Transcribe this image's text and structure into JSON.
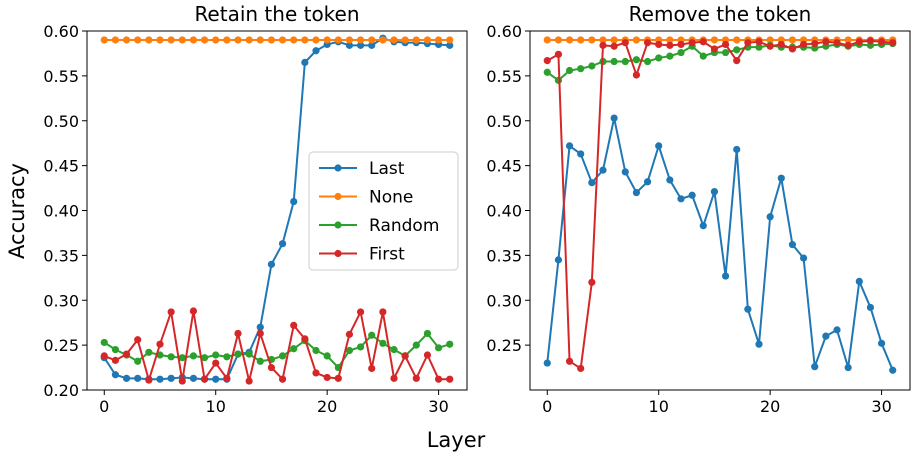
{
  "figure": {
    "shared_xlabel": "Layer"
  },
  "colors": {
    "Last": "#1f77b4",
    "None": "#ff7f0e",
    "Random": "#2ca02c",
    "First": "#d62728"
  },
  "chart_data": [
    {
      "type": "line",
      "title": "Retain the token",
      "xlabel": "Layer",
      "ylabel": "Accuracy",
      "xlim": [
        -1.55,
        32.55
      ],
      "ylim": [
        0.2,
        0.6
      ],
      "xticks": [
        0,
        10,
        20,
        30
      ],
      "yticks": [
        0.2,
        0.25,
        0.3,
        0.35,
        0.4,
        0.45,
        0.5,
        0.55,
        0.6
      ],
      "ytick_labels": [
        "0.20",
        "0.25",
        "0.30",
        "0.35",
        "0.40",
        "0.45",
        "0.50",
        "0.55",
        "0.60"
      ],
      "grid": false,
      "legend": {
        "placement": "center-right",
        "entries": [
          "Last",
          "None",
          "Random",
          "First"
        ]
      },
      "x": [
        0,
        1,
        2,
        3,
        4,
        5,
        6,
        7,
        8,
        9,
        10,
        11,
        12,
        13,
        14,
        15,
        16,
        17,
        18,
        19,
        20,
        21,
        22,
        23,
        24,
        25,
        26,
        27,
        28,
        29,
        30,
        31
      ],
      "series": [
        {
          "name": "Last",
          "values": [
            0.236,
            0.217,
            0.213,
            0.213,
            0.212,
            0.212,
            0.213,
            0.214,
            0.213,
            0.212,
            0.212,
            0.212,
            0.24,
            0.242,
            0.27,
            0.34,
            0.363,
            0.41,
            0.565,
            0.578,
            0.585,
            0.588,
            0.584,
            0.584,
            0.584,
            0.592,
            0.588,
            0.587,
            0.587,
            0.586,
            0.585,
            0.584
          ]
        },
        {
          "name": "None",
          "values": [
            0.59,
            0.59,
            0.59,
            0.59,
            0.59,
            0.59,
            0.59,
            0.59,
            0.59,
            0.59,
            0.59,
            0.59,
            0.59,
            0.59,
            0.59,
            0.59,
            0.59,
            0.59,
            0.59,
            0.59,
            0.59,
            0.59,
            0.59,
            0.59,
            0.59,
            0.59,
            0.59,
            0.59,
            0.59,
            0.59,
            0.59,
            0.59
          ]
        },
        {
          "name": "Random",
          "values": [
            0.253,
            0.245,
            0.239,
            0.232,
            0.242,
            0.239,
            0.237,
            0.236,
            0.238,
            0.236,
            0.239,
            0.237,
            0.24,
            0.24,
            0.232,
            0.234,
            0.238,
            0.246,
            0.255,
            0.244,
            0.238,
            0.225,
            0.244,
            0.248,
            0.261,
            0.252,
            0.245,
            0.238,
            0.25,
            0.263,
            0.247,
            0.251
          ]
        },
        {
          "name": "First",
          "values": [
            0.238,
            0.233,
            0.24,
            0.256,
            0.211,
            0.251,
            0.287,
            0.21,
            0.288,
            0.212,
            0.23,
            0.213,
            0.263,
            0.21,
            0.263,
            0.225,
            0.212,
            0.272,
            0.257,
            0.219,
            0.214,
            0.213,
            0.262,
            0.287,
            0.224,
            0.287,
            0.213,
            0.238,
            0.213,
            0.239,
            0.212,
            0.212
          ]
        }
      ]
    },
    {
      "type": "line",
      "title": "Remove the token",
      "xlabel": "Layer",
      "ylabel": "",
      "xlim": [
        -1.55,
        32.55
      ],
      "ylim": [
        0.2,
        0.6
      ],
      "xticks": [
        0,
        10,
        20,
        30
      ],
      "yticks": [
        0.25,
        0.3,
        0.35,
        0.4,
        0.45,
        0.5,
        0.55,
        0.6
      ],
      "ytick_labels": [
        "0.25",
        "0.30",
        "0.35",
        "0.40",
        "0.45",
        "0.50",
        "0.55",
        "0.60"
      ],
      "grid": false,
      "legend": null,
      "x": [
        0,
        1,
        2,
        3,
        4,
        5,
        6,
        7,
        8,
        9,
        10,
        11,
        12,
        13,
        14,
        15,
        16,
        17,
        18,
        19,
        20,
        21,
        22,
        23,
        24,
        25,
        26,
        27,
        28,
        29,
        30,
        31
      ],
      "series": [
        {
          "name": "Last",
          "values": [
            0.23,
            0.345,
            0.472,
            0.463,
            0.431,
            0.445,
            0.503,
            0.443,
            0.42,
            0.432,
            0.472,
            0.434,
            0.413,
            0.417,
            0.383,
            0.421,
            0.327,
            0.468,
            0.29,
            0.251,
            0.393,
            0.436,
            0.362,
            0.347,
            0.226,
            0.26,
            0.267,
            0.225,
            0.321,
            0.292,
            0.252,
            0.222
          ]
        },
        {
          "name": "None",
          "values": [
            0.59,
            0.59,
            0.59,
            0.59,
            0.59,
            0.59,
            0.59,
            0.59,
            0.59,
            0.59,
            0.59,
            0.59,
            0.59,
            0.59,
            0.59,
            0.59,
            0.59,
            0.59,
            0.59,
            0.59,
            0.59,
            0.59,
            0.59,
            0.59,
            0.59,
            0.59,
            0.59,
            0.59,
            0.59,
            0.59,
            0.59,
            0.59
          ]
        },
        {
          "name": "Random",
          "values": [
            0.554,
            0.545,
            0.556,
            0.558,
            0.561,
            0.566,
            0.566,
            0.566,
            0.568,
            0.566,
            0.57,
            0.572,
            0.576,
            0.583,
            0.572,
            0.576,
            0.576,
            0.579,
            0.582,
            0.582,
            0.584,
            0.582,
            0.582,
            0.582,
            0.581,
            0.583,
            0.585,
            0.583,
            0.585,
            0.584,
            0.585,
            0.586
          ]
        },
        {
          "name": "First",
          "values": [
            0.567,
            0.574,
            0.232,
            0.224,
            0.32,
            0.584,
            0.583,
            0.587,
            0.551,
            0.587,
            0.585,
            0.584,
            0.585,
            0.587,
            0.588,
            0.58,
            0.585,
            0.567,
            0.587,
            0.588,
            0.583,
            0.585,
            0.58,
            0.585,
            0.586,
            0.588,
            0.587,
            0.584,
            0.588,
            0.589,
            0.588,
            0.587
          ]
        }
      ]
    }
  ]
}
